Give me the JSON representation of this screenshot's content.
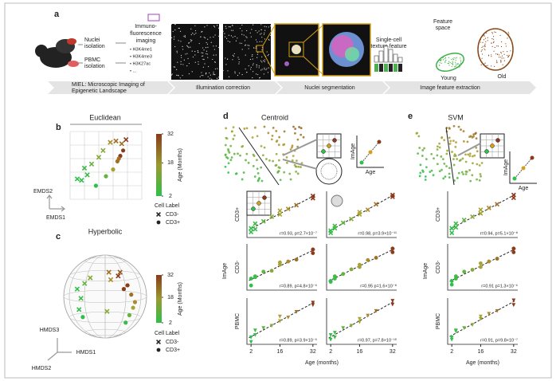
{
  "panel_a": {
    "label": "a",
    "nuclei": [
      "Nuclei",
      "isolation"
    ],
    "pbmc": [
      "PBMC",
      "isolation"
    ],
    "imaging": [
      "Immuno-",
      "fluorescence",
      "imaging"
    ],
    "marks": [
      "• H3K4me1",
      "• H3K4me3",
      "• H3K27ac",
      "• ..."
    ],
    "texture": [
      "Single-cell",
      "texture feature"
    ],
    "feature_space": [
      "Feature",
      "space"
    ],
    "young": "Young",
    "old": "Old",
    "miel": [
      "MIEL: Microscopic Imaging of",
      "Epigenetic Landscape"
    ],
    "stages": [
      "Illumination correction",
      "Nuclei segmentation",
      "Image feature extraction"
    ]
  },
  "panel_b": {
    "label": "b",
    "title": "Euclidean",
    "x_label": "EMDS1",
    "y_label": "EMDS2",
    "colorbar": {
      "title": "Age (Months)",
      "ticks": [
        2,
        18,
        32
      ],
      "clim": [
        2,
        32
      ]
    },
    "legend_title": "Cell Label",
    "legend": [
      "CD3-",
      "CD3+"
    ],
    "points": {
      "x": [
        0.5,
        0.8,
        1.2,
        1.0,
        1.5,
        2.0,
        2.3,
        2.8,
        3.2,
        3.6,
        3.9,
        3.5,
        3.3,
        3.0,
        2.5,
        1.8,
        3.7,
        3.4
      ],
      "y": [
        1.5,
        1.4,
        1.8,
        2.3,
        2.6,
        3.1,
        3.6,
        4.2,
        4.3,
        4.1,
        4.4,
        3.2,
        2.8,
        2.2,
        1.7,
        1.0,
        3.6,
        3.0
      ],
      "age": [
        2,
        2,
        4,
        4,
        8,
        12,
        12,
        20,
        24,
        24,
        32,
        32,
        24,
        16,
        8,
        2,
        32,
        24
      ],
      "label": [
        0,
        0,
        0,
        0,
        0,
        0,
        0,
        0,
        0,
        0,
        0,
        1,
        1,
        1,
        1,
        1,
        1,
        1
      ]
    }
  },
  "panel_c": {
    "label": "c",
    "title": "Hyperbolic",
    "axes": [
      "HMDS3",
      "HMDS1",
      "HMDS2"
    ],
    "colorbar": {
      "title": "Age (Months)",
      "ticks": [
        2,
        18,
        32
      ],
      "clim": [
        2,
        32
      ]
    },
    "legend_title": "Cell Label",
    "legend": [
      "CD3-",
      "CD3+"
    ],
    "points": {
      "x": [
        -0.75,
        -0.65,
        -0.7,
        -0.55,
        -0.4,
        0.1,
        0.15,
        0.35,
        0.6,
        0.7,
        0.75,
        0.65,
        0.55,
        0.8,
        0.5,
        -0.6,
        0.05,
        0.4
      ],
      "y": [
        0.2,
        -0.05,
        -0.35,
        0.35,
        0.5,
        0.65,
        0.45,
        0.55,
        0.3,
        0.05,
        -0.3,
        -0.5,
        -0.7,
        -0.15,
        0.2,
        -0.55,
        -0.4,
        0.65
      ],
      "age": [
        2,
        4,
        2,
        8,
        12,
        24,
        20,
        32,
        32,
        24,
        16,
        8,
        4,
        20,
        32,
        2,
        12,
        28
      ],
      "label": [
        0,
        0,
        0,
        0,
        0,
        0,
        0,
        0,
        1,
        1,
        1,
        1,
        1,
        1,
        1,
        1,
        0,
        0
      ]
    }
  },
  "panel_d": {
    "label": "d",
    "title": "Centroid",
    "inset_x": "Age",
    "inset_y": "ImAge",
    "y_label": "ImAge",
    "rows": [
      "CD3+",
      "CD3-",
      "PBMC"
    ],
    "x_label": "Age (months)",
    "xlim": [
      0,
      34
    ],
    "xticks": [
      2,
      16,
      32
    ],
    "ylim": [
      0,
      1
    ],
    "age": [
      2,
      2,
      4,
      4,
      8,
      12,
      16,
      16,
      20,
      24,
      32,
      32
    ],
    "panels": [
      [
        {
          "stat": "r=0.93, p=2.7×10⁻⁷",
          "values": [
            0.12,
            0.2,
            0.18,
            0.3,
            0.35,
            0.45,
            0.5,
            0.58,
            0.62,
            0.7,
            0.85,
            0.9
          ]
        },
        {
          "stat": "r=0.98, p=3.9×10⁻¹¹",
          "values": [
            0.15,
            0.1,
            0.25,
            0.2,
            0.32,
            0.4,
            0.55,
            0.5,
            0.6,
            0.72,
            0.88,
            0.92
          ]
        }
      ],
      [
        {
          "stat": "r=0.89, p=4.8×10⁻⁶",
          "values": [
            0.1,
            0.25,
            0.3,
            0.28,
            0.4,
            0.42,
            0.55,
            0.6,
            0.62,
            0.66,
            0.8,
            0.88
          ]
        },
        {
          "stat": "r=0.95 p=1.6×10⁻⁸",
          "values": [
            0.2,
            0.18,
            0.3,
            0.25,
            0.35,
            0.45,
            0.5,
            0.55,
            0.65,
            0.7,
            0.82,
            0.9
          ]
        }
      ],
      [
        {
          "stat": "r=0.89, p=3.9×10⁻⁶",
          "values": [
            0.05,
            0.15,
            0.2,
            0.3,
            0.35,
            0.4,
            0.5,
            0.6,
            0.58,
            0.7,
            0.85,
            0.9
          ]
        },
        {
          "stat": "r=0.97, p=7.8×10⁻¹⁰",
          "values": [
            0.1,
            0.2,
            0.15,
            0.25,
            0.35,
            0.4,
            0.48,
            0.55,
            0.62,
            0.72,
            0.86,
            0.94
          ]
        }
      ]
    ]
  },
  "panel_e": {
    "label": "e",
    "title": "SVM",
    "inset_x": "Age",
    "inset_y": "ImAge",
    "y_label": "ImAge",
    "rows": [
      "CD3+",
      "CD3-",
      "PBMC"
    ],
    "x_label": "Age (months)",
    "xlim": [
      0,
      34
    ],
    "xticks": [
      2,
      16,
      32
    ],
    "ylim": [
      0,
      1
    ],
    "age": [
      2,
      2,
      4,
      4,
      8,
      12,
      16,
      16,
      20,
      24,
      32,
      32
    ],
    "panels": [
      [
        {
          "stat": "r=0.94, p=5.1×10⁻⁸",
          "values": [
            0.1,
            0.2,
            0.22,
            0.3,
            0.38,
            0.45,
            0.52,
            0.6,
            0.64,
            0.72,
            0.86,
            0.92
          ]
        }
      ],
      [
        {
          "stat": "r=0.91 p=1.3×10⁻⁶",
          "values": [
            0.12,
            0.2,
            0.3,
            0.25,
            0.4,
            0.44,
            0.5,
            0.58,
            0.62,
            0.68,
            0.82,
            0.9
          ]
        }
      ],
      [
        {
          "stat": "r=0.91, p=9.8×10⁻⁷",
          "values": [
            0.15,
            0.1,
            0.28,
            0.3,
            0.35,
            0.42,
            0.55,
            0.6,
            0.66,
            0.72,
            0.85,
            0.95
          ]
        }
      ]
    ]
  }
}
